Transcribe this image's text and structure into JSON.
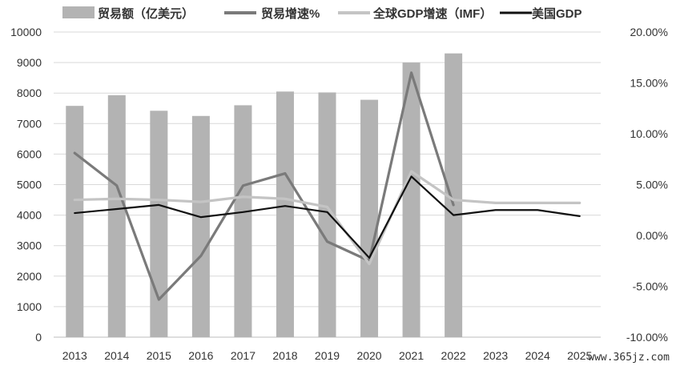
{
  "chart_data": {
    "type": "bar",
    "categories": [
      "2013",
      "2014",
      "2015",
      "2016",
      "2017",
      "2018",
      "2019",
      "2020",
      "2021",
      "2022",
      "2023",
      "2024",
      "2025"
    ],
    "ylim": [
      0,
      10000
    ],
    "y2lim": [
      -0.1,
      0.2
    ],
    "y_ticks": [
      0,
      1000,
      2000,
      3000,
      4000,
      5000,
      6000,
      7000,
      8000,
      9000,
      10000
    ],
    "y2_ticks": [
      -0.1,
      -0.05,
      0.0,
      0.05,
      0.1,
      0.15,
      0.2
    ],
    "y_tick_labels": [
      "0",
      "1000",
      "2000",
      "3000",
      "4000",
      "5000",
      "6000",
      "7000",
      "8000",
      "9000",
      "10000"
    ],
    "y2_tick_labels": [
      "-10.00%",
      "-5.00%",
      "0.00%",
      "5.00%",
      "10.00%",
      "15.00%",
      "20.00%"
    ],
    "legend_position": "top",
    "grid": "horizontal",
    "series": [
      {
        "name": "贸易额（亿美元）",
        "kind": "bar",
        "axis": "left",
        "color": "#b3b3b3",
        "values": [
          7580,
          7930,
          7420,
          7250,
          7600,
          8050,
          8020,
          7780,
          9000,
          9300,
          null,
          null,
          null
        ]
      },
      {
        "name": "贸易增速%",
        "kind": "line",
        "axis": "right",
        "color": "#7a7a7a",
        "values": [
          0.081,
          0.049,
          -0.063,
          -0.02,
          0.049,
          0.061,
          -0.006,
          -0.025,
          0.16,
          0.03,
          null,
          null,
          null
        ]
      },
      {
        "name": "全球GDP增速（IMF）",
        "kind": "line",
        "axis": "right",
        "color": "#c4c4c4",
        "values": [
          0.035,
          0.036,
          0.035,
          0.033,
          0.038,
          0.036,
          0.028,
          -0.028,
          0.063,
          0.035,
          0.032,
          0.032,
          0.032
        ]
      },
      {
        "name": "美国GDP",
        "kind": "line",
        "axis": "right",
        "color": "#111111",
        "values": [
          0.022,
          0.026,
          0.03,
          0.018,
          0.023,
          0.029,
          0.023,
          -0.022,
          0.058,
          0.02,
          0.025,
          0.025,
          0.019
        ]
      }
    ]
  },
  "watermark": "www.365jz.com"
}
